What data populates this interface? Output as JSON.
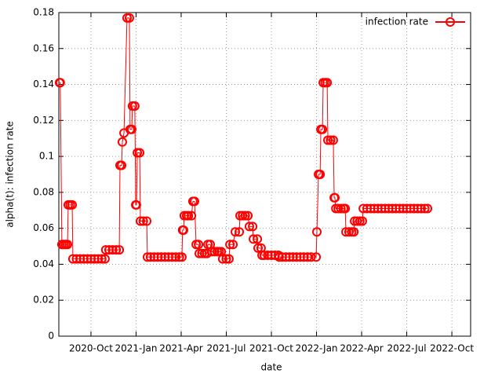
{
  "chart_data": {
    "type": "line",
    "xlabel": "date",
    "ylabel": "alpha(t): infection rate",
    "xlim": [
      2020.572,
      2022.854
    ],
    "ylim": [
      0,
      0.18
    ],
    "xticks": [
      {
        "value": 2020.75,
        "label": "2020-Oct"
      },
      {
        "value": 2021.0,
        "label": "2021-Jan"
      },
      {
        "value": 2021.25,
        "label": "2021-Apr"
      },
      {
        "value": 2021.5,
        "label": "2021-Jul"
      },
      {
        "value": 2021.75,
        "label": "2021-Oct"
      },
      {
        "value": 2022.0,
        "label": "2022-Jan"
      },
      {
        "value": 2022.25,
        "label": "2022-Apr"
      },
      {
        "value": 2022.5,
        "label": "2022-Jul"
      },
      {
        "value": 2022.75,
        "label": "2022-Oct"
      }
    ],
    "yticks": [
      0,
      0.02,
      0.04,
      0.06,
      0.08,
      0.1,
      0.12,
      0.14,
      0.16,
      0.18
    ],
    "grid": true,
    "legend": "top-right",
    "x": [
      2020.576,
      2020.58,
      2020.589,
      2020.6,
      2020.61,
      2020.62,
      2020.624,
      2020.635,
      2020.646,
      2020.65,
      2020.67,
      2020.69,
      2020.71,
      2020.73,
      2020.75,
      2020.77,
      2020.79,
      2020.81,
      2020.828,
      2020.832,
      2020.85,
      2020.87,
      2020.89,
      2020.907,
      2020.911,
      2020.92,
      2020.924,
      2020.933,
      2020.95,
      2020.963,
      2020.967,
      2020.976,
      2020.98,
      2020.993,
      2020.998,
      2021.002,
      2021.007,
      2021.02,
      2021.024,
      2021.04,
      2021.059,
      2021.063,
      2021.08,
      2021.1,
      2021.12,
      2021.14,
      2021.16,
      2021.18,
      2021.2,
      2021.22,
      2021.24,
      2021.254,
      2021.258,
      2021.263,
      2021.267,
      2021.28,
      2021.29,
      2021.307,
      2021.315,
      2021.324,
      2021.333,
      2021.346,
      2021.35,
      2021.365,
      2021.38,
      2021.393,
      2021.398,
      2021.411,
      2021.42,
      2021.435,
      2021.45,
      2021.46,
      2021.472,
      2021.48,
      2021.5,
      2021.515,
      2021.52,
      2021.537,
      2021.55,
      2021.572,
      2021.576,
      2021.59,
      2021.605,
      2021.62,
      2021.628,
      2021.646,
      2021.65,
      2021.672,
      2021.676,
      2021.693,
      2021.698,
      2021.71,
      2021.73,
      2021.75,
      2021.77,
      2021.789,
      2021.793,
      2021.81,
      2021.83,
      2021.85,
      2021.87,
      2021.89,
      2021.91,
      2021.93,
      2021.95,
      2021.97,
      2021.998,
      2022.002,
      2022.011,
      2022.02,
      2022.024,
      2022.033,
      2022.037,
      2022.048,
      2022.059,
      2022.063,
      2022.078,
      2022.093,
      2022.098,
      2022.102,
      2022.107,
      2022.12,
      2022.135,
      2022.15,
      2022.159,
      2022.163,
      2022.18,
      2022.195,
      2022.207,
      2022.211,
      2022.225,
      2022.24,
      2022.254,
      2022.259,
      2022.28,
      2022.3,
      2022.32,
      2022.34,
      2022.36,
      2022.38,
      2022.4,
      2022.42,
      2022.44,
      2022.46,
      2022.48,
      2022.5,
      2022.52,
      2022.54,
      2022.56,
      2022.58,
      2022.6,
      2022.615
    ],
    "series": [
      {
        "name": "infection rate",
        "color": "#ff0000",
        "values": [
          0.141,
          0.141,
          0.051,
          0.051,
          0.051,
          0.051,
          0.073,
          0.073,
          0.073,
          0.043,
          0.043,
          0.043,
          0.043,
          0.043,
          0.043,
          0.043,
          0.043,
          0.043,
          0.043,
          0.048,
          0.048,
          0.048,
          0.048,
          0.048,
          0.095,
          0.095,
          0.108,
          0.113,
          0.177,
          0.177,
          0.115,
          0.115,
          0.128,
          0.128,
          0.073,
          0.073,
          0.102,
          0.102,
          0.064,
          0.064,
          0.064,
          0.044,
          0.044,
          0.044,
          0.044,
          0.044,
          0.044,
          0.044,
          0.044,
          0.044,
          0.044,
          0.044,
          0.059,
          0.059,
          0.067,
          0.067,
          0.067,
          0.067,
          0.075,
          0.075,
          0.051,
          0.051,
          0.046,
          0.046,
          0.046,
          0.046,
          0.051,
          0.051,
          0.047,
          0.047,
          0.047,
          0.047,
          0.047,
          0.043,
          0.043,
          0.043,
          0.051,
          0.051,
          0.058,
          0.058,
          0.067,
          0.067,
          0.067,
          0.067,
          0.061,
          0.061,
          0.054,
          0.054,
          0.049,
          0.049,
          0.045,
          0.045,
          0.045,
          0.045,
          0.045,
          0.045,
          0.044,
          0.044,
          0.044,
          0.044,
          0.044,
          0.044,
          0.044,
          0.044,
          0.044,
          0.044,
          0.044,
          0.058,
          0.09,
          0.09,
          0.115,
          0.115,
          0.141,
          0.141,
          0.141,
          0.109,
          0.109,
          0.109,
          0.077,
          0.077,
          0.071,
          0.071,
          0.071,
          0.071,
          0.071,
          0.058,
          0.058,
          0.058,
          0.058,
          0.064,
          0.064,
          0.064,
          0.064,
          0.071,
          0.071,
          0.071,
          0.071,
          0.071,
          0.071,
          0.071,
          0.071,
          0.071,
          0.071,
          0.071,
          0.071,
          0.071,
          0.071,
          0.071,
          0.071,
          0.071,
          0.071,
          0.071
        ]
      }
    ]
  }
}
